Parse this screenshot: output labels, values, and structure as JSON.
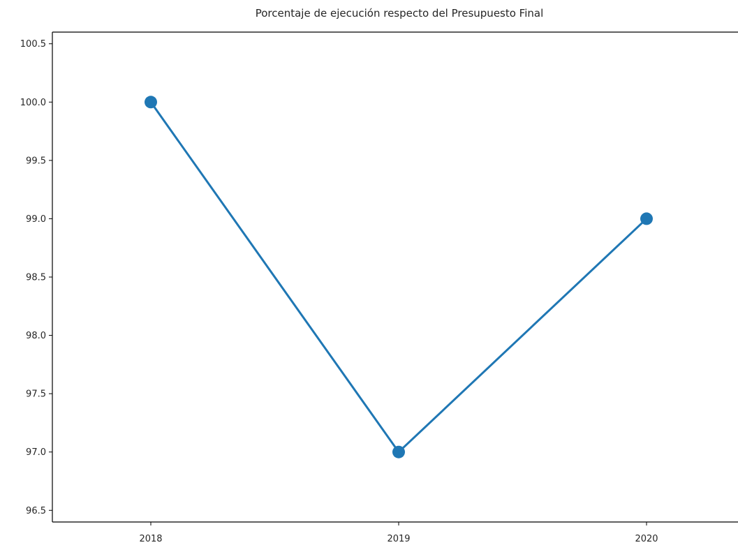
{
  "chart_data": {
    "type": "line",
    "title": "Porcentaje de ejecución respecto del Presupuesto Final",
    "xlabel": "",
    "ylabel": "",
    "categories": [
      "2018",
      "2019",
      "2020"
    ],
    "series": [
      {
        "values": [
          100.0,
          97.0,
          99.0
        ],
        "color": "#1f77b4"
      }
    ],
    "ylim": [
      96.4,
      100.6
    ],
    "yticks": [
      "96.5",
      "97.0",
      "97.5",
      "98.0",
      "98.5",
      "99.0",
      "99.5",
      "100.0",
      "100.5"
    ],
    "grid": false,
    "markers": true
  }
}
